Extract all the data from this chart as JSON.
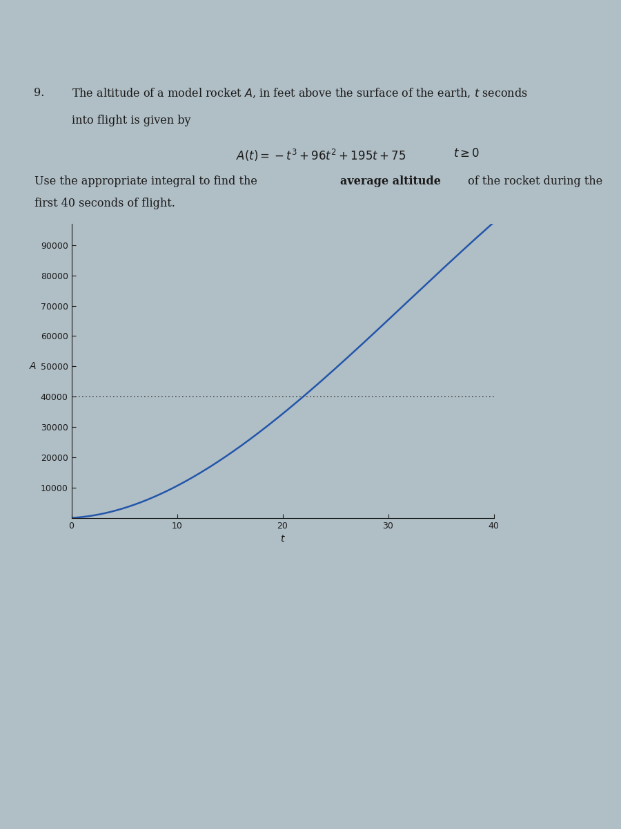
{
  "yticks": [
    10000,
    20000,
    30000,
    40000,
    50000,
    60000,
    70000,
    80000,
    90000
  ],
  "xticks": [
    0,
    10,
    20,
    30,
    40
  ],
  "xlim": [
    0,
    40
  ],
  "ylim": [
    0,
    97000
  ],
  "average_altitude": 40000,
  "curve_color": "#2255aa",
  "dotted_line_color": "#444444",
  "bg_color": "#b0bec5",
  "text_color": "#1a1a1a",
  "font_size_text": 11.5,
  "font_size_tick": 9,
  "font_size_label": 10
}
